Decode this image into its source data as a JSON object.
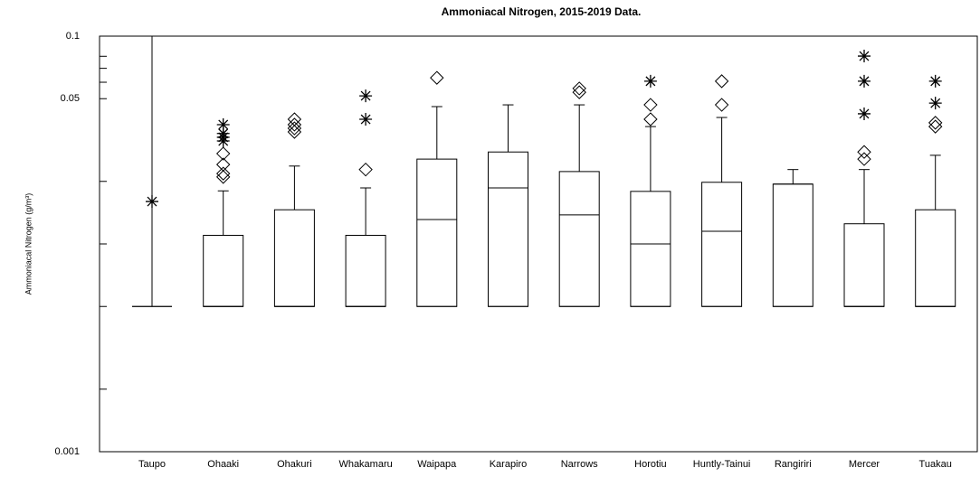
{
  "chart_data": {
    "type": "boxplot",
    "title": "Ammoniacal Nitrogen, 2015-2019 Data.",
    "y_label": "Ammoniacal Nitrogen (g/m³)",
    "log_y": true,
    "ylim": [
      0.001,
      0.1
    ],
    "yticks": [
      0.001,
      0.05,
      0.1
    ],
    "yticks_minor": [
      0.002,
      0.005,
      0.01,
      0.02,
      0.06,
      0.07,
      0.08
    ],
    "color": "#000000",
    "categories": [
      "Taupo",
      "Ohaaki",
      "Ohakuri",
      "Whakamaru",
      "Waipapa",
      "Karapiro",
      "Narrows",
      "Horotiu",
      "Huntly-Tainui",
      "Rangiriri",
      "Mercer",
      "Tuakau"
    ],
    "boxes": [
      {
        "min": 0.005,
        "q1": 0.005,
        "median": 0.005,
        "q3": 0.005,
        "max": 0.1,
        "outliers": [],
        "extremes": [
          0.016
        ]
      },
      {
        "min": 0.005,
        "q1": 0.005,
        "median": 0.005,
        "q3": 0.011,
        "max": 0.018,
        "outliers": [
          0.0272,
          0.0241,
          0.0218,
          0.021
        ],
        "extremes": [
          0.0375,
          0.034,
          0.0326,
          0.0313
        ]
      },
      {
        "min": 0.005,
        "q1": 0.005,
        "median": 0.005,
        "q3": 0.0146,
        "max": 0.0237,
        "outliers": [
          0.0398,
          0.0375,
          0.036,
          0.0346
        ],
        "extremes": []
      },
      {
        "min": 0.005,
        "q1": 0.005,
        "median": 0.005,
        "q3": 0.011,
        "max": 0.0186,
        "outliers": [
          0.0228
        ],
        "extremes": [
          0.0516,
          0.0398
        ]
      },
      {
        "min": 0.005,
        "q1": 0.005,
        "median": 0.0131,
        "q3": 0.0256,
        "max": 0.0458,
        "outliers": [
          0.063
        ],
        "extremes": []
      },
      {
        "min": 0.005,
        "q1": 0.005,
        "median": 0.0186,
        "q3": 0.0277,
        "max": 0.0467,
        "outliers": [],
        "extremes": []
      },
      {
        "min": 0.005,
        "q1": 0.005,
        "median": 0.0138,
        "q3": 0.0223,
        "max": 0.0467,
        "outliers": [
          0.056,
          0.0537
        ],
        "extremes": []
      },
      {
        "min": 0.005,
        "q1": 0.005,
        "median": 0.01,
        "q3": 0.0179,
        "max": 0.0367,
        "outliers": [
          0.0467,
          0.0398
        ],
        "extremes": [
          0.0607
        ]
      },
      {
        "min": 0.005,
        "q1": 0.005,
        "median": 0.0115,
        "q3": 0.0198,
        "max": 0.0406,
        "outliers": [
          0.0607,
          0.0467
        ],
        "extremes": []
      },
      {
        "min": 0.005,
        "q1": 0.005,
        "median": 0.0194,
        "q3": 0.0194,
        "max": 0.0228,
        "outliers": [],
        "extremes": []
      },
      {
        "min": 0.005,
        "q1": 0.005,
        "median": 0.005,
        "q3": 0.0125,
        "max": 0.0228,
        "outliers": [
          0.0277,
          0.0256
        ],
        "extremes": [
          0.0802,
          0.0607,
          0.0423
        ]
      },
      {
        "min": 0.005,
        "q1": 0.005,
        "median": 0.005,
        "q3": 0.0146,
        "max": 0.0267,
        "outliers": [
          0.0383,
          0.0367
        ],
        "extremes": [
          0.0607,
          0.0476
        ]
      }
    ]
  }
}
